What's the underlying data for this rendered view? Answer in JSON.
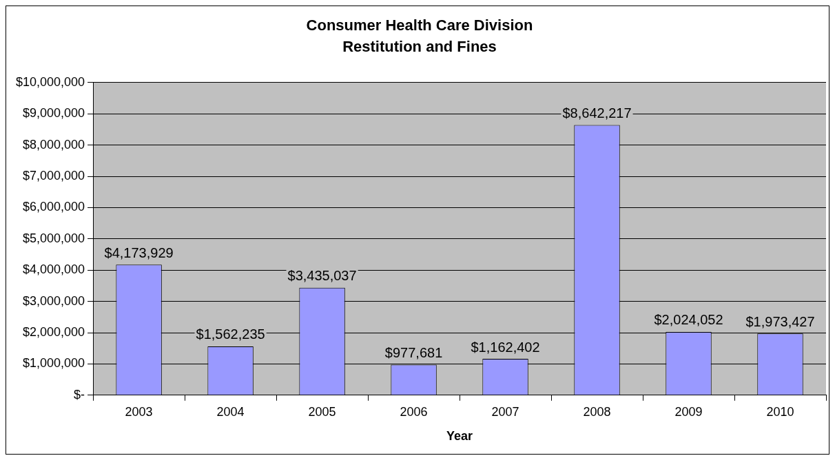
{
  "chart_data": {
    "type": "bar",
    "title": "Consumer Health Care Division",
    "subtitle": "Restitution and Fines",
    "xlabel": "Year",
    "categories": [
      "2003",
      "2004",
      "2005",
      "2006",
      "2007",
      "2008",
      "2009",
      "2010"
    ],
    "values": [
      4173929,
      1562235,
      3435037,
      977681,
      1162402,
      8642217,
      2024052,
      1973427
    ],
    "value_labels": [
      "$4,173,929",
      "$1,562,235",
      "$3,435,037",
      "$977,681",
      "$1,162,402",
      "$8,642,217",
      "$2,024,052",
      "$1,973,427"
    ],
    "color": "#9999ff",
    "ylim": [
      0,
      10000000
    ],
    "yticks": [
      {
        "value": 0,
        "label": "$-"
      },
      {
        "value": 1000000,
        "label": "$1,000,000"
      },
      {
        "value": 2000000,
        "label": "$2,000,000"
      },
      {
        "value": 3000000,
        "label": "$3,000,000"
      },
      {
        "value": 4000000,
        "label": "$4,000,000"
      },
      {
        "value": 5000000,
        "label": "$5,000,000"
      },
      {
        "value": 6000000,
        "label": "$6,000,000"
      },
      {
        "value": 7000000,
        "label": "$7,000,000"
      },
      {
        "value": 8000000,
        "label": "$8,000,000"
      },
      {
        "value": 9000000,
        "label": "$9,000,000"
      },
      {
        "value": 10000000,
        "label": "$10,000,000"
      }
    ],
    "grid": "y",
    "legend": false
  }
}
